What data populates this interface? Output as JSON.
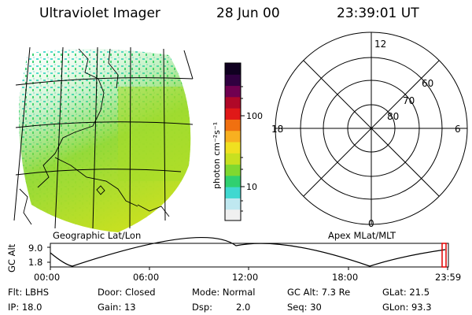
{
  "header": {
    "instrument": "Ultraviolet Imager",
    "date": "28 Jun 00",
    "time": "23:39:01 UT"
  },
  "colorbar": {
    "unit_label": "photon cm⁻²s⁻¹",
    "ticks": [
      "100",
      "10"
    ],
    "colors": [
      "#f0f0f0",
      "#bfe8f0",
      "#40d8d0",
      "#30d070",
      "#80d830",
      "#c8e020",
      "#f0e020",
      "#f8b020",
      "#f07010",
      "#e01818",
      "#b00828",
      "#700050",
      "#300040",
      "#100020"
    ]
  },
  "map_panel": {
    "caption": "Geographic Lat/Lon",
    "accent_color": "#90d830"
  },
  "polar_panel": {
    "caption": "Apex MLat/MLT",
    "mlt_labels": {
      "top": "12",
      "left": "18",
      "right": "6",
      "bottom": "0"
    },
    "lat_labels": [
      "60",
      "70",
      "80"
    ]
  },
  "gc_plot": {
    "ylabel": "GC Alt",
    "yticks": [
      "9.0",
      "1.8"
    ],
    "xticks": [
      "00:00",
      "06:00",
      "12:00",
      "18:00",
      "23:59"
    ],
    "marker_color": "#e00000"
  },
  "status": {
    "flt": "Flt: LBHS",
    "ip": "IP: 18.0",
    "door": "Door: Closed",
    "gain": "Gain: 13",
    "mode": "Mode: Normal",
    "dsp_label": "Dsp:",
    "dsp_value": "2.0",
    "gc_alt": "GC Alt: 7.3 Re",
    "seq": "Seq: 30",
    "glat": "GLat: 21.5",
    "glon": "GLon: 93.3"
  }
}
